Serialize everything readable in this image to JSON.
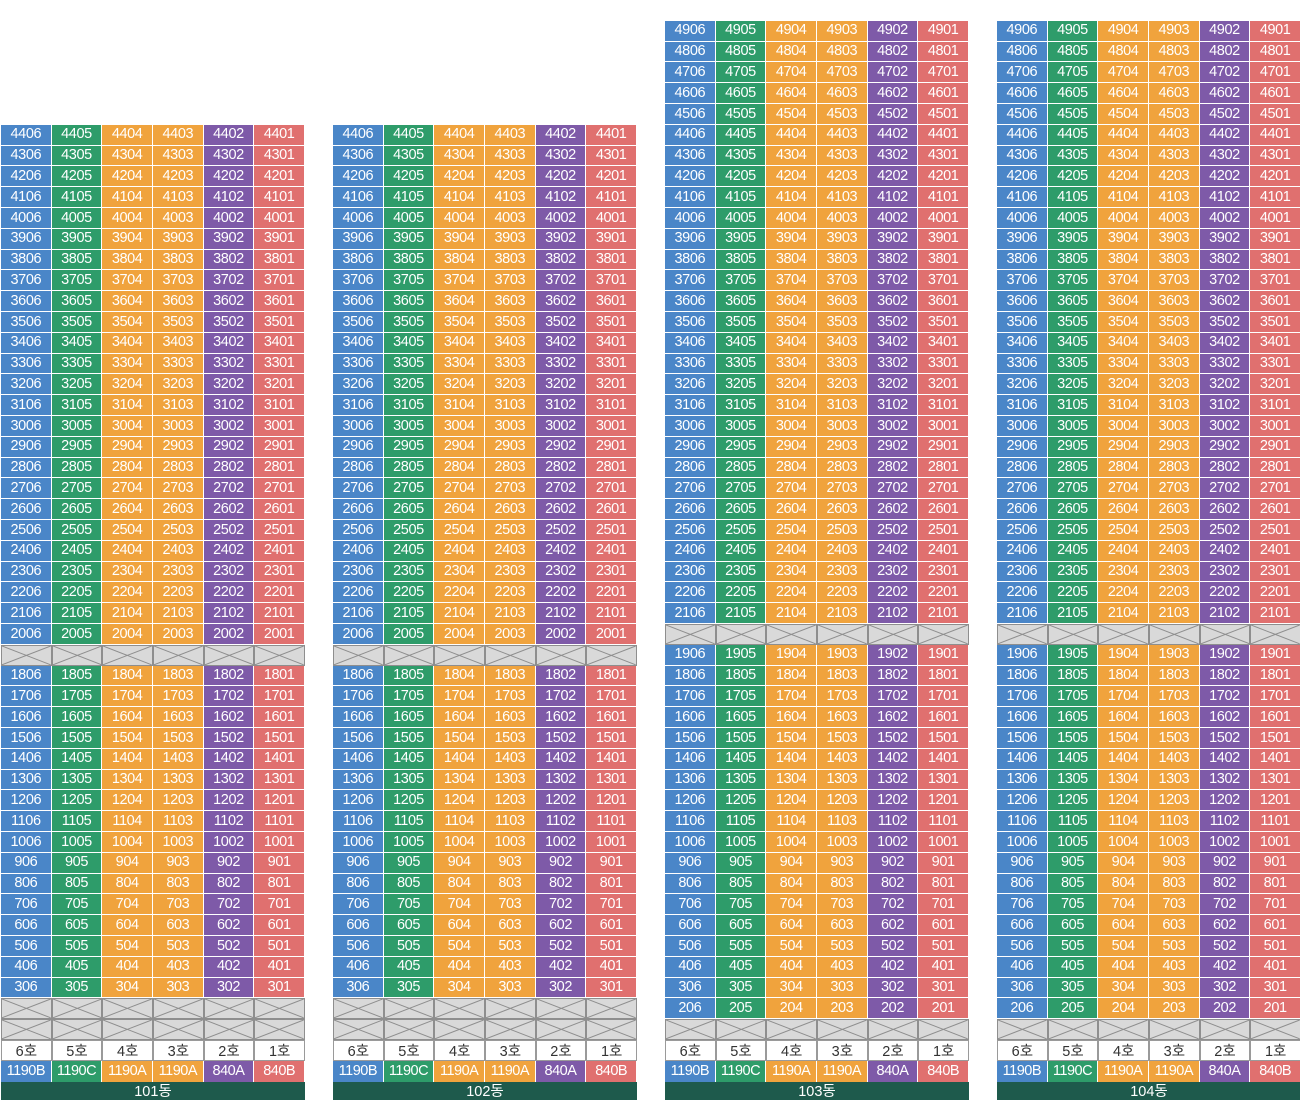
{
  "line_colors": {
    "6": "#4a86c8",
    "5": "#2e9c6a",
    "4": "#f0a33d",
    "3": "#f0a33d",
    "2": "#7e5aa8",
    "1": "#e0706f"
  },
  "lines": [
    6,
    5,
    4,
    3,
    2,
    1
  ],
  "buildings": [
    {
      "name": "101동",
      "upper_floors": {
        "from": 20,
        "to": 44
      },
      "lower_floors": {
        "from": 3,
        "to": 18
      },
      "lower_blank_rows": 2,
      "unit_labels": [
        "6호",
        "5호",
        "4호",
        "3호",
        "2호",
        "1호"
      ],
      "area_types": [
        "1190B",
        "1190C",
        "1190A",
        "1190A",
        "840A",
        "840B"
      ]
    },
    {
      "name": "102동",
      "upper_floors": {
        "from": 20,
        "to": 44
      },
      "lower_floors": {
        "from": 3,
        "to": 18
      },
      "lower_blank_rows": 2,
      "unit_labels": [
        "6호",
        "5호",
        "4호",
        "3호",
        "2호",
        "1호"
      ],
      "area_types": [
        "1190B",
        "1190C",
        "1190A",
        "1190A",
        "840A",
        "840B"
      ]
    },
    {
      "name": "103동",
      "upper_floors": {
        "from": 21,
        "to": 49
      },
      "lower_floors": {
        "from": 2,
        "to": 19
      },
      "lower_blank_rows": 1,
      "unit_labels": [
        "6호",
        "5호",
        "4호",
        "3호",
        "2호",
        "1호"
      ],
      "area_types": [
        "1190B",
        "1190C",
        "1190A",
        "1190A",
        "840A",
        "840B"
      ]
    },
    {
      "name": "104동",
      "upper_floors": {
        "from": 21,
        "to": 49
      },
      "lower_floors": {
        "from": 2,
        "to": 19
      },
      "lower_blank_rows": 1,
      "unit_labels": [
        "6호",
        "5호",
        "4호",
        "3호",
        "2호",
        "1호"
      ],
      "area_types": [
        "1190B",
        "1190C",
        "1190A",
        "1190A",
        "840A",
        "840B"
      ]
    }
  ]
}
